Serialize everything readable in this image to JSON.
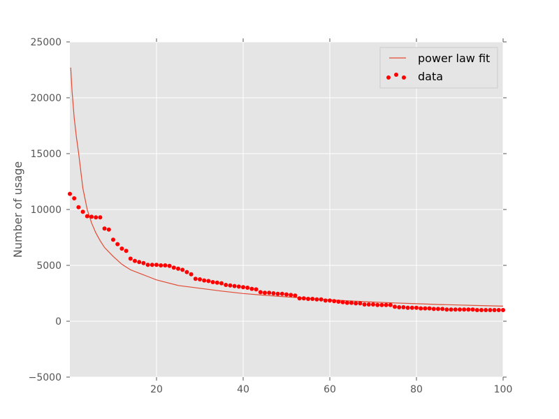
{
  "chart_data": {
    "type": "scatter",
    "title": "",
    "xlabel": "",
    "ylabel": "Number of usage",
    "xlim": [
      0,
      100
    ],
    "ylim": [
      -5000,
      25000
    ],
    "x_ticks": [
      20,
      40,
      60,
      80,
      100
    ],
    "y_ticks": [
      -5000,
      0,
      5000,
      10000,
      15000,
      20000,
      25000
    ],
    "grid": true,
    "legend_position": "upper right",
    "series": [
      {
        "name": "power law fit",
        "kind": "line",
        "color": "#e24a33",
        "x": [
          0.2,
          0.5,
          1,
          1.5,
          2,
          3,
          4,
          5,
          6,
          7,
          8,
          9,
          10,
          12,
          14,
          16,
          18,
          20,
          25,
          30,
          35,
          40,
          45,
          50,
          55,
          60,
          65,
          70,
          75,
          80,
          85,
          90,
          95,
          100
        ],
        "y": [
          22700,
          20600,
          18200,
          16500,
          15100,
          11900,
          10000,
          8800,
          7900,
          7200,
          6600,
          6200,
          5800,
          5100,
          4600,
          4300,
          4000,
          3700,
          3200,
          2950,
          2700,
          2480,
          2320,
          2180,
          2050,
          1920,
          1810,
          1720,
          1640,
          1570,
          1500,
          1450,
          1400,
          1350
        ]
      },
      {
        "name": "data",
        "kind": "scatter",
        "color": "#ff0000",
        "x": [
          0,
          1,
          2,
          3,
          4,
          5,
          6,
          7,
          8,
          9,
          10,
          11,
          12,
          13,
          14,
          15,
          16,
          17,
          18,
          19,
          20,
          21,
          22,
          23,
          24,
          25,
          26,
          27,
          28,
          29,
          30,
          31,
          32,
          33,
          34,
          35,
          36,
          37,
          38,
          39,
          40,
          41,
          42,
          43,
          44,
          45,
          46,
          47,
          48,
          49,
          50,
          51,
          52,
          53,
          54,
          55,
          56,
          57,
          58,
          59,
          60,
          61,
          62,
          63,
          64,
          65,
          66,
          67,
          68,
          69,
          70,
          71,
          72,
          73,
          74,
          75,
          76,
          77,
          78,
          79,
          80,
          81,
          82,
          83,
          84,
          85,
          86,
          87,
          88,
          89,
          90,
          91,
          92,
          93,
          94,
          95,
          96,
          97,
          98,
          99,
          100
        ],
        "y": [
          11400,
          11000,
          10200,
          9800,
          9400,
          9350,
          9300,
          9300,
          8300,
          8200,
          7300,
          6900,
          6500,
          6300,
          5600,
          5400,
          5300,
          5200,
          5050,
          5050,
          5050,
          5000,
          5000,
          4950,
          4800,
          4700,
          4600,
          4400,
          4200,
          3800,
          3750,
          3650,
          3600,
          3500,
          3450,
          3400,
          3250,
          3200,
          3150,
          3100,
          3050,
          3000,
          2900,
          2850,
          2600,
          2550,
          2550,
          2500,
          2450,
          2450,
          2400,
          2350,
          2300,
          2050,
          2050,
          2000,
          2000,
          1950,
          1950,
          1850,
          1850,
          1800,
          1750,
          1700,
          1650,
          1650,
          1600,
          1600,
          1500,
          1500,
          1500,
          1450,
          1450,
          1450,
          1450,
          1300,
          1250,
          1250,
          1200,
          1200,
          1200,
          1150,
          1150,
          1150,
          1100,
          1100,
          1100,
          1050,
          1050,
          1050,
          1050,
          1050,
          1050,
          1050,
          1000,
          1000,
          1000,
          1000,
          1000,
          1000,
          1000
        ]
      }
    ]
  }
}
